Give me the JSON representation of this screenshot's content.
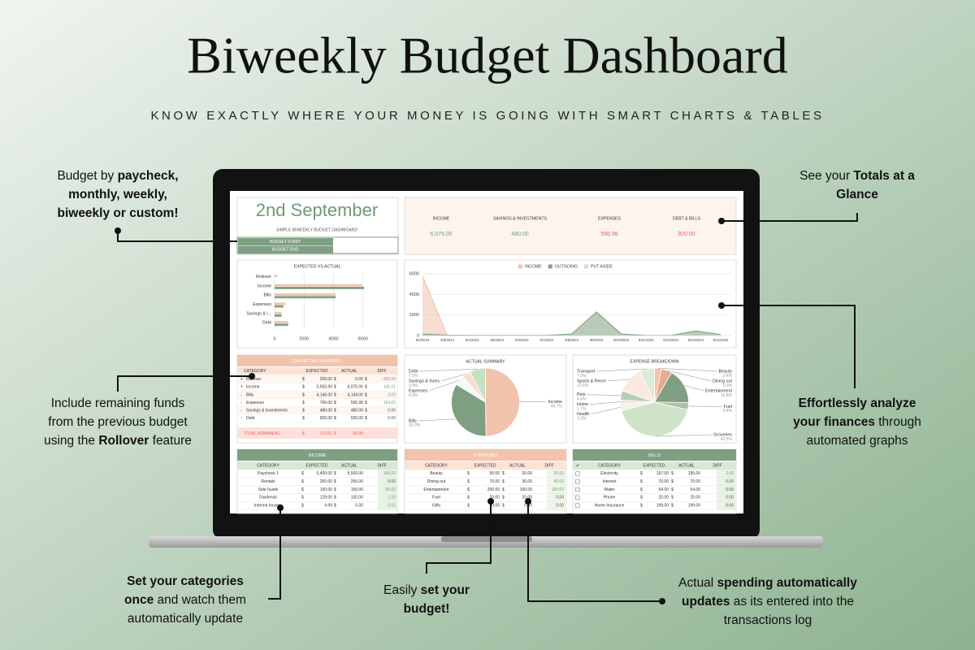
{
  "header": {
    "title": "Biweekly Budget Dashboard",
    "subtitle": "KNOW EXACTLY WHERE YOUR MONEY IS GOING WITH SMART CHARTS & TABLES"
  },
  "callouts": [
    {
      "lines": [
        [
          {
            "text": "Budget by ",
            "bold": false
          },
          {
            "text": "paycheck,",
            "bold": true
          }
        ],
        [
          {
            "text": "monthly, weekly,",
            "bold": true
          }
        ],
        [
          {
            "text": "biweekly or custom!",
            "bold": true
          }
        ]
      ]
    },
    {
      "lines": [
        [
          {
            "text": "See your ",
            "bold": false
          },
          {
            "text": "Totals at a",
            "bold": true
          }
        ],
        [
          {
            "text": "Glance",
            "bold": true
          }
        ]
      ]
    },
    {
      "lines": [
        [
          {
            "text": "Include remaining funds",
            "bold": false
          }
        ],
        [
          {
            "text": "from the previous budget",
            "bold": false
          }
        ],
        [
          {
            "text": "using the ",
            "bold": false
          },
          {
            "text": "Rollover",
            "bold": true
          },
          {
            "text": " feature",
            "bold": false
          }
        ]
      ]
    },
    {
      "lines": [
        [
          {
            "text": "Effortlessly analyze",
            "bold": true
          }
        ],
        [
          {
            "text": "your finances",
            "bold": true
          },
          {
            "text": " through",
            "bold": false
          }
        ],
        [
          {
            "text": "automated graphs",
            "bold": false
          }
        ]
      ]
    },
    {
      "lines": [
        [
          {
            "text": "Set your categories",
            "bold": true
          }
        ],
        [
          {
            "text": "once",
            "bold": true
          },
          {
            "text": " and watch them",
            "bold": false
          }
        ],
        [
          {
            "text": "automatically update",
            "bold": false
          }
        ]
      ]
    },
    {
      "lines": [
        [
          {
            "text": "Easily ",
            "bold": false
          },
          {
            "text": "set your",
            "bold": true
          }
        ],
        [
          {
            "text": "budget!",
            "bold": true
          }
        ]
      ]
    },
    {
      "lines": [
        [
          {
            "text": "Actual ",
            "bold": false
          },
          {
            "text": "spending automatically",
            "bold": true
          }
        ],
        [
          {
            "text": "updates",
            "bold": true
          },
          {
            "text": " as its entered into the",
            "bold": false
          }
        ],
        [
          {
            "text": "transactions log",
            "bold": false
          }
        ]
      ]
    }
  ],
  "dashboard": {
    "date": "2nd September",
    "subtitle": "SIMPLE BIWEEKLY BUDGET DASHBOARD",
    "budget_start": "BUDGET START",
    "budget_end": "BUDGET END",
    "currency": "$",
    "totals": [
      {
        "label": "INCOME",
        "value": "6,075.00"
      },
      {
        "label": "SAVINGS & INVESTMENTS",
        "value": "480.00"
      },
      {
        "label": "EXPENSES",
        "value": "596.98"
      },
      {
        "label": "DEBT & BILLS",
        "value": "920.00"
      }
    ],
    "cashflow": {
      "title": "CASHFLOW SUMMARY",
      "columns": [
        "CATEGORY",
        "EXPECTED",
        "ACTUAL",
        "DIFF"
      ],
      "rows": [
        [
          "+",
          "Rollover",
          "200.00",
          "0.00",
          "-200.00"
        ],
        [
          "+",
          "Income",
          "5,933.99",
          "6,075.00",
          "141.01"
        ],
        [
          "-",
          "Bills",
          "4,146.00",
          "4,144.00",
          "2.00"
        ],
        [
          "-",
          "Expenses",
          "760.00",
          "596.98",
          "163.02"
        ],
        [
          "-",
          "Savings & Investments",
          "480.00",
          "480.00",
          "0.00"
        ],
        [
          "-",
          "Debt",
          "920.00",
          "920.00",
          "0.00"
        ]
      ],
      "total": [
        "TOTAL REMAINING",
        "-172.01",
        "-65.98"
      ]
    },
    "income": {
      "title": "INCOME",
      "columns": [
        "CATEGORY",
        "EXPECTED",
        "ACTUAL",
        "DIFF"
      ],
      "rows": [
        [
          "Paycheck 1",
          "5,400.00",
          "5,500.00",
          "100.00"
        ],
        [
          "Rentals",
          "250.00",
          "250.00",
          "0.00"
        ],
        [
          "Side hustle",
          "100.00",
          "150.00",
          "50.00"
        ],
        [
          "Dividends",
          "129.00",
          "130.00",
          "1.00"
        ],
        [
          "Interest Income",
          "4.99",
          "5.00",
          "0.01"
        ]
      ]
    },
    "expenses": {
      "title": "EXPENSES",
      "columns": [
        "CATEGORY",
        "EXPECTED",
        "ACTUAL",
        "DIFF"
      ],
      "rows": [
        [
          "Beauty",
          "50.00",
          "20.00",
          "30.00"
        ],
        [
          "Dining out",
          "70.00",
          "30.00",
          "40.00"
        ],
        [
          "Entertainment",
          "200.00",
          "100.00",
          "100.00"
        ],
        [
          "Fuel",
          "20.00",
          "20.00",
          "0.00"
        ],
        [
          "Gifts",
          "0.00",
          "0.00",
          "0.00"
        ]
      ]
    },
    "bills": {
      "title": "BILLS",
      "columns": [
        "✔",
        "CATEGORY",
        "EXPECTED",
        "ACTUAL",
        "DIFF"
      ],
      "rows": [
        [
          "Electricity",
          "197.00",
          "195.00",
          "2.00"
        ],
        [
          "Internet",
          "70.00",
          "70.00",
          "0.00"
        ],
        [
          "Water",
          "54.00",
          "54.00",
          "0.00"
        ],
        [
          "Phone",
          "25.00",
          "25.00",
          "0.00"
        ],
        [
          "Home Insurance",
          "199.00",
          "199.00",
          "0.00"
        ]
      ]
    }
  },
  "chart_data": [
    {
      "type": "bar",
      "orientation": "horizontal",
      "title": "EXPECTED VS ACTUAL",
      "categories": [
        "Rollover",
        "Income",
        "Bills",
        "Expenses",
        "Savings & I...",
        "Debt"
      ],
      "series": [
        {
          "color": "#f2c3ad",
          "values": [
            200,
            5933.99,
            4146,
            760,
            480,
            920
          ]
        },
        {
          "color": "#7f9f82",
          "values": [
            0,
            6075,
            4144,
            596.98,
            480,
            920
          ]
        }
      ],
      "xlim": [
        0,
        8000
      ],
      "xticks": [
        0,
        2000,
        4000,
        6000
      ],
      "grid": true
    },
    {
      "type": "area",
      "categories": [
        "9/2/2024",
        "9/3/2024",
        "9/4/2024",
        "9/5/2024",
        "9/6/2024",
        "9/7/2024",
        "9/8/2024",
        "9/9/2024",
        "9/10/2024",
        "9/11/2024",
        "9/12/2024",
        "9/13/2024",
        "9/14/2024"
      ],
      "series": [
        {
          "name": "INCOME",
          "color": "#f2c3ad",
          "values": [
            5800,
            0,
            0,
            0,
            0,
            0,
            0,
            0,
            0,
            0,
            0,
            0,
            0
          ]
        },
        {
          "name": "OUTGOING",
          "color": "#7f9f82",
          "values": [
            150,
            50,
            30,
            30,
            30,
            30,
            150,
            2300,
            150,
            20,
            20,
            450,
            100
          ]
        },
        {
          "name": "PUT ASIDE",
          "color": "#cfe3c9",
          "values": [
            0,
            0,
            0,
            0,
            0,
            0,
            0,
            0,
            0,
            0,
            0,
            0,
            0
          ]
        }
      ],
      "ylim": [
        0,
        6000
      ],
      "yticks": [
        0,
        2000,
        4000,
        6000
      ],
      "grid": true
    },
    {
      "type": "pie",
      "title": "ACTUAL SUMMARY",
      "categories": [
        "Income",
        "Bills",
        "Expenses",
        "Savings & Inves",
        "Debt"
      ],
      "values": [
        49.7,
        33.9,
        4.9,
        3.9,
        7.5
      ],
      "value_labels": [
        "49.7%",
        "33.9%",
        "4.9%",
        "3.9%",
        "7.5%"
      ],
      "colors": [
        "#f2c3ad",
        "#7f9f82",
        "#f7f7f5",
        "#f8dccd",
        "#c9dfc5"
      ]
    },
    {
      "type": "pie",
      "title": "EXPENSE BREAKDOWN",
      "categories": [
        "Beauty",
        "Dining out",
        "Entertainment",
        "Fuel",
        "Groceries",
        "Health",
        "Home",
        "Pets",
        "Sports & Recre",
        "Transport"
      ],
      "values": [
        3.4,
        5.0,
        16.8,
        3.4,
        42.5,
        3.3,
        1.7,
        4.4,
        12.6,
        7.0
      ],
      "value_labels": [
        "3.4%",
        "5.0%",
        "16.8%",
        "3.4%",
        "42.5%",
        "3.3%",
        "1.7%",
        "4.4%",
        "12.6%",
        "7.0%"
      ],
      "colors": [
        "#f2c3ad",
        "#e9a98f",
        "#7f9f82",
        "#a9c4a6",
        "#cfe3c9",
        "#eef5ec",
        "#f8dccd",
        "#b5cfb0",
        "#fbe9df",
        "#dcebd8"
      ]
    }
  ]
}
